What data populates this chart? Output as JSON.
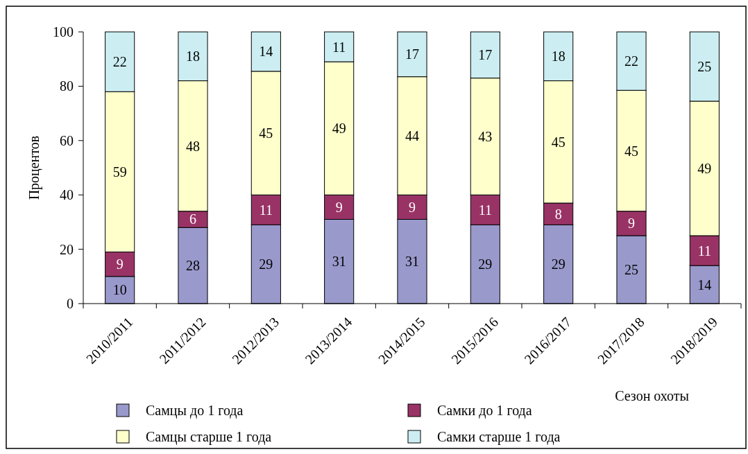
{
  "chart_data": {
    "type": "bar",
    "stacked": true,
    "xlabel": "Сезон охоты",
    "ylabel": "Процентов",
    "categories": [
      "2010/2011",
      "2011/2012",
      "2012/2013",
      "2013/2014",
      "2014/2015",
      "2015/2016",
      "2016/2017",
      "2017/2018",
      "2018/2019"
    ],
    "series": [
      {
        "name": "Самцы до 1 года",
        "color": "#9999cc",
        "values": [
          10,
          28,
          29,
          31,
          31,
          29,
          29,
          25,
          14
        ],
        "value_labels": [
          "10",
          "28",
          "29",
          "31",
          "31",
          "29",
          "29",
          "25",
          "14"
        ]
      },
      {
        "name": "Самки до 1 года",
        "color": "#993366",
        "values": [
          9,
          6,
          11,
          9,
          9,
          11,
          8,
          9,
          11
        ],
        "value_labels": [
          "9",
          "6",
          "11",
          "9",
          "9",
          "11",
          "8",
          "9",
          "11"
        ]
      },
      {
        "name": "Самцы старше 1 года",
        "color": "#ffffcc",
        "values": [
          59,
          48,
          45.5,
          49,
          43.5,
          43,
          45,
          44.5,
          49.5
        ],
        "value_labels": [
          "59",
          "48",
          "45",
          "49",
          "44",
          "43",
          "45",
          "45",
          "49"
        ]
      },
      {
        "name": "Самки старше 1 года",
        "color": "#cceef2",
        "values": [
          22,
          18,
          14.5,
          11,
          16.5,
          17,
          18,
          21.5,
          25.5
        ],
        "value_labels": [
          "22",
          "18",
          "14",
          "11",
          "17",
          "17",
          "18",
          "22",
          "25"
        ]
      }
    ],
    "ylim": [
      0,
      100
    ],
    "yticks": [
      0,
      20,
      40,
      60,
      80,
      100
    ],
    "legend": "bottom",
    "grid": false
  }
}
